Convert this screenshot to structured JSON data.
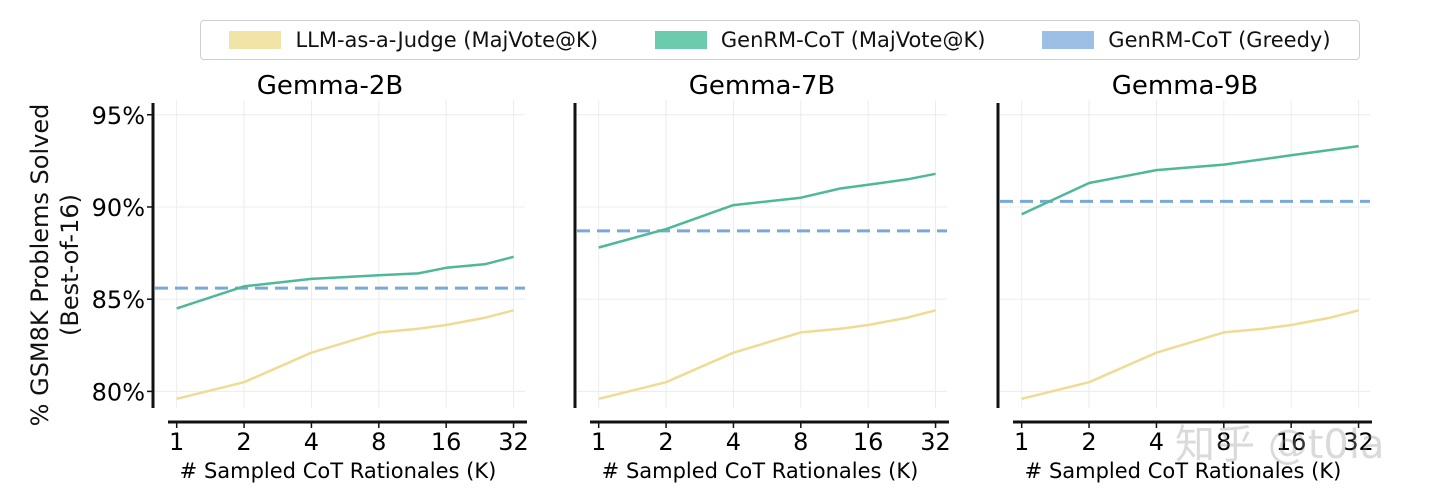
{
  "legend": [
    {
      "label": "LLM-as-a-Judge (MajVote@K)",
      "color": "#f2e4a6"
    },
    {
      "label": "GenRM-CoT (MajVote@K)",
      "color": "#6dcbad"
    },
    {
      "label": "GenRM-CoT (Greedy)",
      "color": "#9bbfe5"
    }
  ],
  "ylabel_lines": [
    "% GSM8K Problems Solved",
    "(Best-of-16)"
  ],
  "watermark": "知乎 @t0la",
  "colors": {
    "judge": "#eedc94",
    "cot": "#4fb897",
    "greedy": "#78a9d9",
    "grid": "#ececec"
  },
  "chart_data": [
    {
      "type": "line",
      "title": "Gemma-2B",
      "xlabel": "# Sampled CoT Rationales (K)",
      "ylabel": "% GSM8K Problems Solved (Best-of-16)",
      "x_scale": "log2",
      "x_ticks": [
        1,
        2,
        4,
        8,
        16,
        32
      ],
      "y_ticks": [
        80,
        85,
        90,
        95
      ],
      "y_tick_labels": [
        "80%",
        "85%",
        "90%",
        "95%"
      ],
      "xlim": [
        0.8,
        36
      ],
      "ylim": [
        79.1,
        95.8
      ],
      "show_y_ticks": true,
      "grid": true,
      "series": [
        {
          "name": "LLM-as-a-Judge (MajVote@K)",
          "style": "solid",
          "x": [
            1,
            2,
            4,
            8,
            12,
            16,
            24,
            32
          ],
          "y": [
            79.6,
            80.5,
            82.1,
            83.2,
            83.4,
            83.6,
            84.0,
            84.4
          ]
        },
        {
          "name": "GenRM-CoT (MajVote@K)",
          "style": "solid",
          "x": [
            1,
            2,
            4,
            8,
            12,
            16,
            24,
            32
          ],
          "y": [
            84.5,
            85.7,
            86.1,
            86.3,
            86.4,
            86.7,
            86.9,
            87.3
          ]
        },
        {
          "name": "GenRM-CoT (Greedy)",
          "style": "dashed",
          "x": [
            0.8,
            36
          ],
          "y": [
            85.6,
            85.6
          ]
        }
      ]
    },
    {
      "type": "line",
      "title": "Gemma-7B",
      "xlabel": "# Sampled CoT Rationales (K)",
      "ylabel": "",
      "x_scale": "log2",
      "x_ticks": [
        1,
        2,
        4,
        8,
        16,
        32
      ],
      "y_ticks": [
        80,
        85,
        90,
        95
      ],
      "xlim": [
        0.8,
        36
      ],
      "ylim": [
        79.1,
        95.8
      ],
      "show_y_ticks": false,
      "grid": true,
      "series": [
        {
          "name": "LLM-as-a-Judge (MajVote@K)",
          "style": "solid",
          "x": [
            1,
            2,
            4,
            8,
            12,
            16,
            24,
            32
          ],
          "y": [
            79.6,
            80.5,
            82.1,
            83.2,
            83.4,
            83.6,
            84.0,
            84.4
          ]
        },
        {
          "name": "GenRM-CoT (MajVote@K)",
          "style": "solid",
          "x": [
            1,
            2,
            4,
            8,
            12,
            16,
            24,
            32
          ],
          "y": [
            87.8,
            88.8,
            90.1,
            90.5,
            91.0,
            91.2,
            91.5,
            91.8
          ]
        },
        {
          "name": "GenRM-CoT (Greedy)",
          "style": "dashed",
          "x": [
            0.8,
            36
          ],
          "y": [
            88.7,
            88.7
          ]
        }
      ]
    },
    {
      "type": "line",
      "title": "Gemma-9B",
      "xlabel": "# Sampled CoT Rationales (K)",
      "ylabel": "",
      "x_scale": "log2",
      "x_ticks": [
        1,
        2,
        4,
        8,
        16,
        32
      ],
      "y_ticks": [
        80,
        85,
        90,
        95
      ],
      "xlim": [
        0.8,
        36
      ],
      "ylim": [
        79.1,
        95.8
      ],
      "show_y_ticks": false,
      "grid": true,
      "series": [
        {
          "name": "LLM-as-a-Judge (MajVote@K)",
          "style": "solid",
          "x": [
            1,
            2,
            4,
            8,
            12,
            16,
            24,
            32
          ],
          "y": [
            79.6,
            80.5,
            82.1,
            83.2,
            83.4,
            83.6,
            84.0,
            84.4
          ]
        },
        {
          "name": "GenRM-CoT (MajVote@K)",
          "style": "solid",
          "x": [
            1,
            2,
            4,
            8,
            16,
            32
          ],
          "y": [
            89.6,
            91.3,
            92.0,
            92.3,
            92.8,
            93.3
          ]
        },
        {
          "name": "GenRM-CoT (Greedy)",
          "style": "dashed",
          "x": [
            0.8,
            36
          ],
          "y": [
            90.3,
            90.3
          ]
        }
      ]
    }
  ]
}
